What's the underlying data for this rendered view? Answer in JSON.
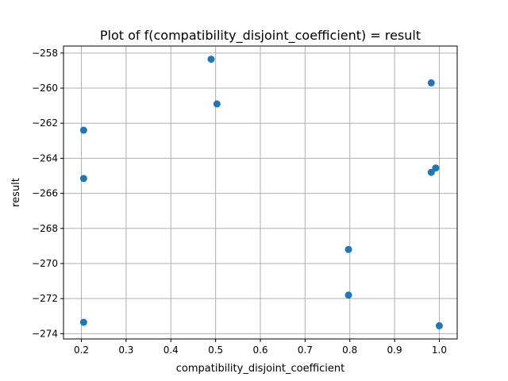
{
  "chart_data": {
    "type": "scatter",
    "title": "Plot of f(compatibility_disjoint_coefficient) = result",
    "xlabel": "compatibility_disjoint_coefficient",
    "ylabel": "result",
    "xlim": [
      0.16,
      1.04
    ],
    "ylim": [
      -274.3,
      -257.6
    ],
    "xticks": [
      0.2,
      0.3,
      0.4,
      0.5,
      0.6,
      0.7,
      0.8,
      0.9,
      1.0
    ],
    "xtick_labels": [
      "0.2",
      "0.3",
      "0.4",
      "0.5",
      "0.6",
      "0.7",
      "0.8",
      "0.9",
      "1.0"
    ],
    "yticks": [
      -258,
      -260,
      -262,
      -264,
      -266,
      -268,
      -270,
      -272,
      -274
    ],
    "ytick_labels": [
      "−258",
      "−260",
      "−262",
      "−264",
      "−266",
      "−268",
      "−270",
      "−272",
      "−274"
    ],
    "grid": true,
    "marker_color": "#1f77b4",
    "points": [
      {
        "x": 0.205,
        "y": -262.4
      },
      {
        "x": 0.205,
        "y": -265.15
      },
      {
        "x": 0.205,
        "y": -273.35
      },
      {
        "x": 0.49,
        "y": -258.35
      },
      {
        "x": 0.503,
        "y": -260.9
      },
      {
        "x": 0.797,
        "y": -269.2
      },
      {
        "x": 0.797,
        "y": -271.8
      },
      {
        "x": 0.982,
        "y": -259.7
      },
      {
        "x": 0.982,
        "y": -264.8
      },
      {
        "x": 0.992,
        "y": -264.55
      },
      {
        "x": 1.0,
        "y": -273.55
      }
    ]
  }
}
